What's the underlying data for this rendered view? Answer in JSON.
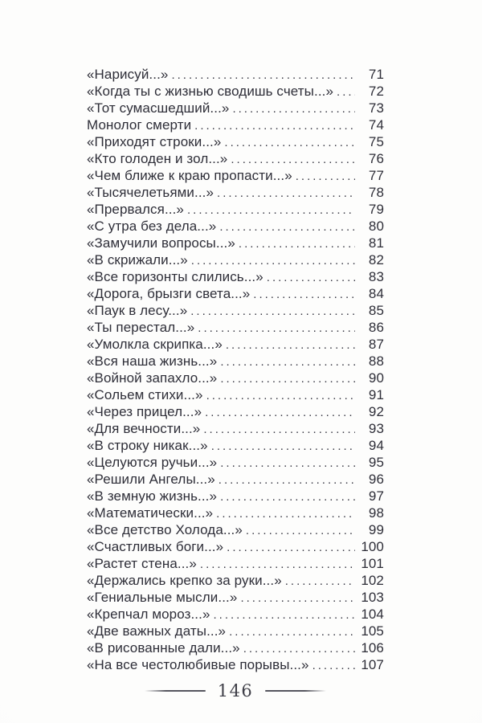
{
  "toc": {
    "entries": [
      {
        "title": "«Нарисуй...»",
        "page": "71"
      },
      {
        "title": "«Когда ты с жизнью сводишь счеты...»",
        "page": "72"
      },
      {
        "title": "«Тот сумасшедший...»",
        "page": "73"
      },
      {
        "title": "Монолог смерти",
        "page": "74"
      },
      {
        "title": "«Приходят строки...»",
        "page": "75"
      },
      {
        "title": "«Кто голоден и зол...»",
        "page": "76"
      },
      {
        "title": "«Чем ближе к краю пропасти...»",
        "page": "77"
      },
      {
        "title": "«Тысячелетьями...»",
        "page": "78"
      },
      {
        "title": "«Прервался...»",
        "page": "79"
      },
      {
        "title": "«С утра без дела...»",
        "page": "80"
      },
      {
        "title": "«Замучили вопросы...»",
        "page": "81"
      },
      {
        "title": "«В скрижали...»",
        "page": "82"
      },
      {
        "title": "«Все горизонты слились...»",
        "page": "83"
      },
      {
        "title": "«Дорога, брызги света...»",
        "page": "84"
      },
      {
        "title": "«Паук в лесу...»",
        "page": "85"
      },
      {
        "title": "«Ты перестал...»",
        "page": "86"
      },
      {
        "title": "«Умолкла скрипка...»",
        "page": "87"
      },
      {
        "title": "«Вся наша жизнь...»",
        "page": "88"
      },
      {
        "title": "«Войной запахло...»",
        "page": "90"
      },
      {
        "title": "«Сольем стихи...»",
        "page": "91"
      },
      {
        "title": "«Через прицел...»",
        "page": "92"
      },
      {
        "title": "«Для вечности...»",
        "page": "93"
      },
      {
        "title": "«В строку никак...»",
        "page": "94"
      },
      {
        "title": "«Целуются ручьи...»",
        "page": "95"
      },
      {
        "title": "«Решили Ангелы...»",
        "page": "96"
      },
      {
        "title": "«В земную жизнь...»",
        "page": "97"
      },
      {
        "title": "«Математически...»",
        "page": "98"
      },
      {
        "title": "«Все детство Холода...»",
        "page": "99"
      },
      {
        "title": "«Счастливых боги...»",
        "page": "100"
      },
      {
        "title": "«Растет стена...»",
        "page": "101"
      },
      {
        "title": "«Держались крепко за руки...»",
        "page": "102"
      },
      {
        "title": "«Гениальные мысли...»",
        "page": "103"
      },
      {
        "title": "«Крепчал мороз...»",
        "page": "104"
      },
      {
        "title": "«Две важных даты...»",
        "page": "105"
      },
      {
        "title": "«В рисованные дали...»",
        "page": "106"
      },
      {
        "title": "«На все честолюбивые порывы...»",
        "page": "107"
      }
    ]
  },
  "footer": {
    "page_number": "146"
  },
  "colors": {
    "text": "#2e2e38",
    "leader_dots": "#3a3a45",
    "folio_text": "#3f3f48",
    "rule": "#55555e",
    "background": "#fdfdfc"
  }
}
